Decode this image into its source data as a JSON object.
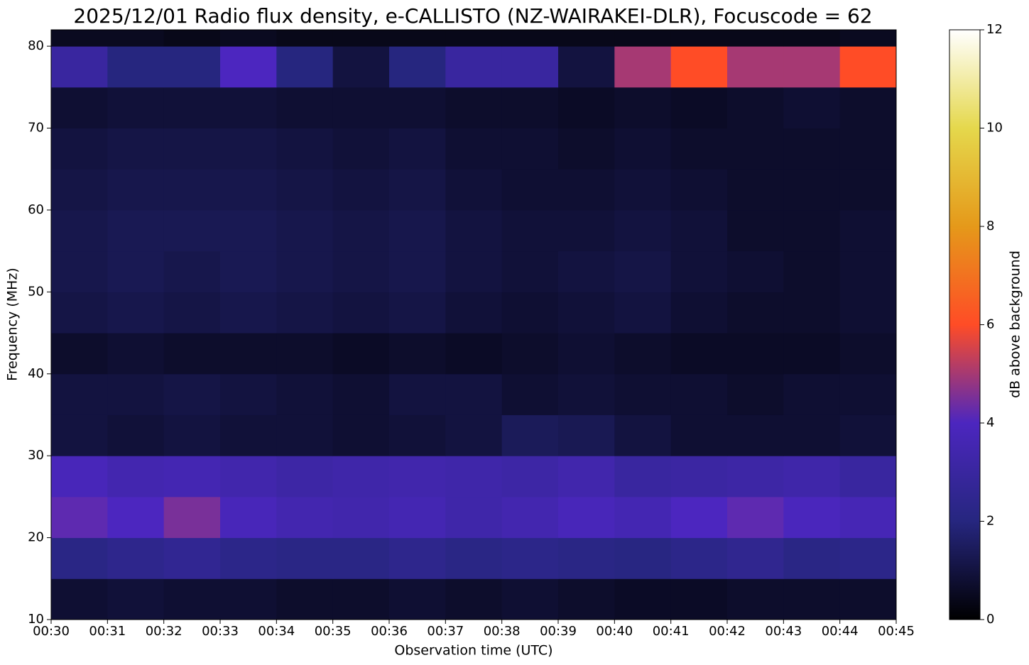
{
  "chart_data": {
    "type": "heatmap",
    "title": "2025/12/01 Radio flux density, e-CALLISTO (NZ-WAIRAKEI-DLR), Focuscode = 62",
    "x_label": "Observation time (UTC)",
    "y_label": "Frequency (MHz)",
    "colorbar_label": "dB above background",
    "xlim": [
      0,
      15
    ],
    "xticks": [
      {
        "value": 0,
        "label": "00:30"
      },
      {
        "value": 1,
        "label": "00:31"
      },
      {
        "value": 2,
        "label": "00:32"
      },
      {
        "value": 3,
        "label": "00:33"
      },
      {
        "value": 4,
        "label": "00:34"
      },
      {
        "value": 5,
        "label": "00:35"
      },
      {
        "value": 6,
        "label": "00:36"
      },
      {
        "value": 7,
        "label": "00:37"
      },
      {
        "value": 8,
        "label": "00:38"
      },
      {
        "value": 9,
        "label": "00:39"
      },
      {
        "value": 10,
        "label": "00:40"
      },
      {
        "value": 11,
        "label": "00:41"
      },
      {
        "value": 12,
        "label": "00:42"
      },
      {
        "value": 13,
        "label": "00:43"
      },
      {
        "value": 14,
        "label": "00:44"
      },
      {
        "value": 15,
        "label": "00:45"
      }
    ],
    "ylim": [
      10,
      82
    ],
    "yticks": [
      10,
      20,
      30,
      40,
      50,
      60,
      70,
      80
    ],
    "xbins": [
      0,
      1,
      2,
      3,
      4,
      5,
      6,
      7,
      8,
      9,
      10,
      11,
      12,
      13,
      14,
      15
    ],
    "ybins": [
      10,
      15,
      20,
      25,
      30,
      35,
      40,
      45,
      50,
      55,
      60,
      65,
      70,
      75,
      80,
      82
    ],
    "z": [
      [
        0.8,
        0.9,
        0.8,
        0.8,
        0.7,
        0.7,
        0.8,
        0.7,
        0.8,
        0.7,
        0.6,
        0.6,
        0.7,
        0.7,
        0.7
      ],
      [
        2.2,
        2.4,
        2.6,
        2.3,
        2.2,
        2.2,
        2.4,
        2.2,
        2.3,
        2.2,
        2.1,
        2.3,
        2.5,
        2.2,
        2.3
      ],
      [
        4.2,
        4.0,
        4.5,
        3.8,
        3.5,
        3.4,
        3.6,
        3.3,
        3.5,
        3.8,
        3.6,
        4.0,
        4.2,
        3.9,
        3.7
      ],
      [
        3.8,
        3.5,
        3.6,
        3.4,
        3.2,
        3.3,
        3.4,
        3.3,
        3.2,
        3.4,
        3.0,
        3.1,
        3.2,
        3.3,
        3.0
      ],
      [
        1.0,
        0.9,
        1.0,
        0.9,
        0.9,
        0.8,
        0.9,
        1.0,
        1.4,
        1.3,
        1.0,
        0.8,
        0.8,
        0.8,
        0.9
      ],
      [
        1.0,
        1.0,
        1.1,
        1.0,
        0.9,
        0.8,
        1.0,
        1.0,
        0.8,
        0.9,
        0.8,
        0.8,
        0.7,
        0.8,
        0.8
      ],
      [
        0.7,
        0.8,
        0.7,
        0.7,
        0.7,
        0.6,
        0.7,
        0.6,
        0.7,
        0.8,
        0.7,
        0.6,
        0.6,
        0.6,
        0.7
      ],
      [
        1.1,
        1.2,
        1.1,
        1.2,
        1.1,
        1.0,
        1.1,
        0.9,
        0.8,
        0.9,
        1.0,
        0.8,
        0.7,
        0.7,
        0.8
      ],
      [
        1.2,
        1.3,
        1.2,
        1.3,
        1.2,
        1.1,
        1.2,
        1.0,
        0.9,
        1.0,
        1.1,
        0.9,
        0.8,
        0.7,
        0.8
      ],
      [
        1.2,
        1.3,
        1.3,
        1.3,
        1.2,
        1.1,
        1.2,
        1.0,
        0.9,
        0.9,
        1.0,
        0.9,
        0.7,
        0.7,
        0.8
      ],
      [
        1.1,
        1.2,
        1.2,
        1.2,
        1.1,
        1.0,
        1.1,
        0.9,
        0.8,
        0.8,
        0.9,
        0.8,
        0.7,
        0.7,
        0.7
      ],
      [
        1.0,
        1.1,
        1.1,
        1.1,
        1.0,
        0.9,
        1.0,
        0.8,
        0.8,
        0.7,
        0.8,
        0.7,
        0.7,
        0.7,
        0.7
      ],
      [
        0.8,
        0.9,
        0.9,
        0.9,
        0.8,
        0.8,
        0.8,
        0.7,
        0.7,
        0.6,
        0.7,
        0.6,
        0.7,
        0.8,
        0.7
      ],
      [
        3.0,
        2.0,
        2.0,
        4.0,
        2.0,
        1.0,
        2.0,
        3.0,
        3.0,
        1.0,
        5.0,
        6.0,
        5.0,
        5.0,
        6.0
      ],
      [
        0.5,
        0.5,
        0.4,
        0.5,
        0.4,
        0.4,
        0.4,
        0.4,
        0.4,
        0.4,
        0.4,
        0.4,
        0.4,
        0.4,
        0.5
      ]
    ],
    "clim": [
      0,
      12
    ],
    "colorbar_ticks": [
      0,
      2,
      4,
      6,
      8,
      10,
      12
    ],
    "colormap": [
      "#000000",
      "#26267f",
      "#4c26bf",
      "#ff4c26",
      "#e5991a",
      "#e5d84c",
      "#ffffff"
    ]
  }
}
